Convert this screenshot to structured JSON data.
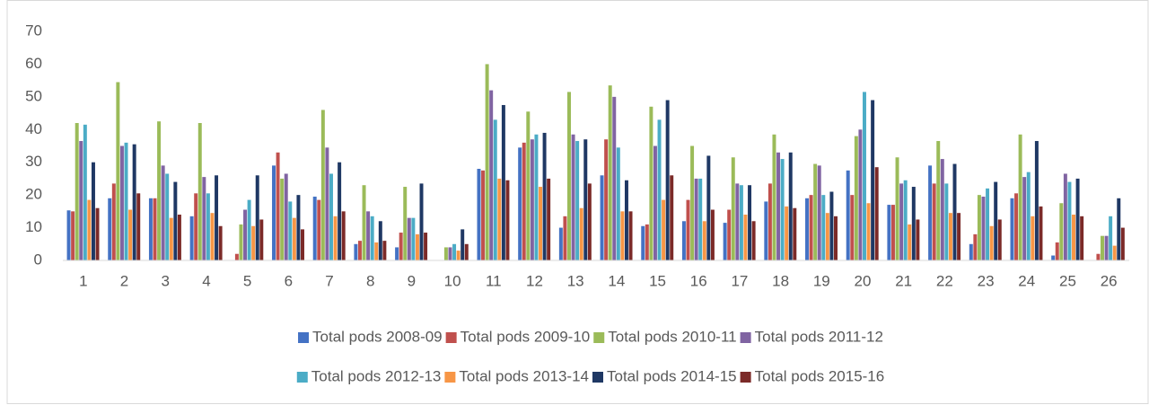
{
  "chart_data": {
    "type": "bar",
    "categories": [
      "1",
      "2",
      "3",
      "4",
      "5",
      "6",
      "7",
      "8",
      "9",
      "10",
      "11",
      "12",
      "13",
      "14",
      "15",
      "16",
      "17",
      "18",
      "19",
      "20",
      "21",
      "22",
      "23",
      "24",
      "25",
      "26"
    ],
    "ylim": [
      0,
      70
    ],
    "yticks": [
      0,
      10,
      20,
      30,
      40,
      50,
      60,
      70
    ],
    "grid": false,
    "series": [
      {
        "name": "Total pods 2008-09",
        "color": "#4472c4",
        "values": [
          15.3,
          19,
          19,
          13.5,
          0,
          29,
          19.5,
          5,
          4,
          0,
          28,
          34.5,
          10,
          26,
          10.5,
          12,
          11.5,
          18,
          19,
          27.5,
          17,
          29,
          5,
          19,
          1.5,
          0
        ]
      },
      {
        "name": "Total pods 2009-10",
        "color": "#c0504d",
        "values": [
          15,
          23.5,
          19,
          20.5,
          2,
          33,
          18.5,
          6,
          8.5,
          0,
          27.5,
          36,
          13.5,
          37,
          11,
          18.5,
          15.5,
          23.5,
          20,
          20,
          17,
          23.5,
          8,
          20.5,
          5.5,
          2
        ]
      },
      {
        "name": "Total pods 2010-11",
        "color": "#9bbb59",
        "values": [
          42,
          54.5,
          42.5,
          42,
          11,
          25,
          46,
          23,
          22.5,
          4,
          60,
          45.5,
          51.5,
          53.5,
          47,
          35,
          31.5,
          38.5,
          29.5,
          38,
          31.5,
          36.5,
          20,
          38.5,
          17.5,
          7.5
        ]
      },
      {
        "name": "Total pods 2011-12",
        "color": "#8064a2",
        "values": [
          36.5,
          35,
          29,
          25.5,
          15.5,
          26.5,
          34.5,
          15,
          13,
          4,
          52,
          37,
          38.5,
          50,
          35,
          25,
          23.5,
          33,
          29,
          40,
          23.5,
          31,
          19.5,
          25.5,
          26.5,
          7.5
        ]
      },
      {
        "name": "Total pods 2012-13",
        "color": "#4bacc6",
        "values": [
          41.5,
          36,
          26.5,
          20.5,
          18.5,
          18,
          26.5,
          13.5,
          13,
          5,
          43,
          38.5,
          36.5,
          34.5,
          43,
          25,
          23,
          31,
          20,
          51.5,
          24.5,
          23.5,
          22,
          27,
          24,
          13.5
        ]
      },
      {
        "name": "Total pods 2013-14",
        "color": "#f79646",
        "values": [
          18.5,
          15.5,
          13,
          14.5,
          10.5,
          13,
          13.5,
          5.5,
          8,
          3,
          25,
          22.5,
          16,
          15,
          18.5,
          12,
          14,
          16.5,
          14.5,
          17.5,
          11,
          14.5,
          10.5,
          13.5,
          14,
          4.5
        ]
      },
      {
        "name": "Total pods 2014-15",
        "color": "#1f3864",
        "values": [
          30,
          35.5,
          24,
          26,
          26,
          20,
          30,
          12,
          23.5,
          9.5,
          47.5,
          39,
          37,
          24.5,
          49,
          32,
          23,
          33,
          21,
          49,
          22.5,
          29.5,
          24,
          36.5,
          25,
          19
        ]
      },
      {
        "name": "Total pods 2015-16",
        "color": "#7b2a28",
        "values": [
          16,
          20.5,
          14,
          10.5,
          12.5,
          9.5,
          15,
          6,
          8.5,
          5,
          24.5,
          25,
          23.5,
          15,
          26,
          15.5,
          12,
          16,
          13.5,
          28.5,
          12.5,
          14.5,
          12.5,
          16.5,
          13.5,
          10
        ]
      }
    ]
  }
}
